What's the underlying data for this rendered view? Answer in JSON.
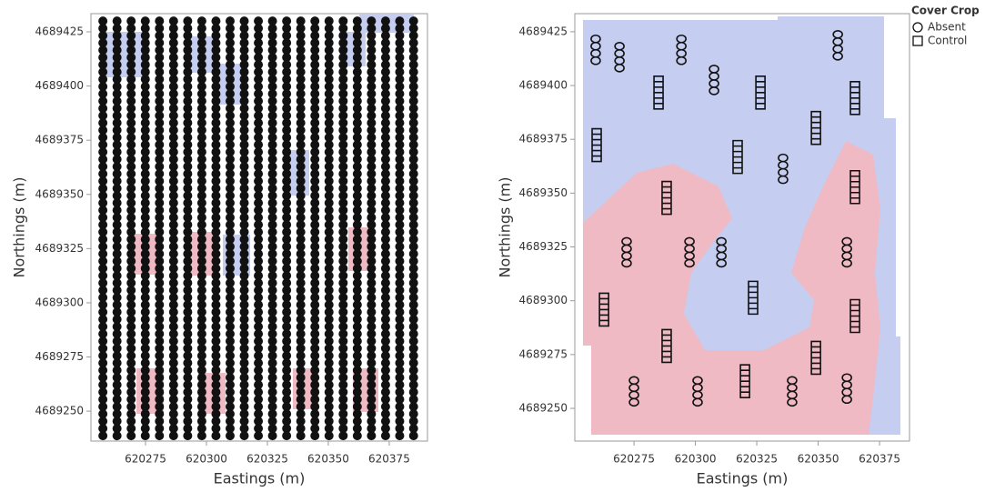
{
  "chart_data": [
    {
      "type": "scatter",
      "xlabel": "Eastings (m)",
      "ylabel": "Northings (m)",
      "xlim": [
        620252.6,
        620390.7
      ],
      "ylim": [
        4689236.2,
        4689433.4
      ],
      "xticks": [
        620275,
        620300,
        620325,
        620350,
        620375
      ],
      "yticks": [
        4689250,
        4689275,
        4689300,
        4689325,
        4689350,
        4689375,
        4689400,
        4689425
      ],
      "color": "#111111",
      "tracks": [
        {
          "x": [
            620257.5,
            620257.5
          ],
          "y": [
            4689430,
            4689238
          ]
        },
        {
          "x": [
            620263.3,
            620263.3
          ],
          "y": [
            4689430,
            4689238
          ]
        },
        {
          "x": [
            620269.1,
            620269.1
          ],
          "y": [
            4689430,
            4689238
          ]
        },
        {
          "x": [
            620274.9,
            620274.9
          ],
          "y": [
            4689430,
            4689238
          ]
        },
        {
          "x": [
            620280.7,
            620280.7
          ],
          "y": [
            4689430,
            4689238
          ]
        },
        {
          "x": [
            620286.5,
            620286.5
          ],
          "y": [
            4689430,
            4689238
          ]
        },
        {
          "x": [
            620292.3,
            620292.3
          ],
          "y": [
            4689430,
            4689238
          ]
        },
        {
          "x": [
            620298.1,
            620298.1
          ],
          "y": [
            4689430,
            4689238
          ]
        },
        {
          "x": [
            620303.9,
            620303.9
          ],
          "y": [
            4689430,
            4689238
          ]
        },
        {
          "x": [
            620309.7,
            620309.7
          ],
          "y": [
            4689430,
            4689238
          ]
        },
        {
          "x": [
            620315.5,
            620315.5
          ],
          "y": [
            4689430,
            4689238
          ]
        },
        {
          "x": [
            620321.3,
            620321.3
          ],
          "y": [
            4689430,
            4689238
          ]
        },
        {
          "x": [
            620327.1,
            620327.1
          ],
          "y": [
            4689430,
            4689238
          ]
        },
        {
          "x": [
            620332.9,
            620332.9
          ],
          "y": [
            4689430,
            4689238
          ]
        },
        {
          "x": [
            620338.7,
            620338.7
          ],
          "y": [
            4689430,
            4689238
          ]
        },
        {
          "x": [
            620344.5,
            620344.5
          ],
          "y": [
            4689430,
            4689238
          ]
        },
        {
          "x": [
            620350.3,
            620350.3
          ],
          "y": [
            4689430,
            4689238
          ]
        },
        {
          "x": [
            620356.1,
            620356.1
          ],
          "y": [
            4689430,
            4689238
          ]
        },
        {
          "x": [
            620361.9,
            620361.9
          ],
          "y": [
            4689430,
            4689238
          ]
        },
        {
          "x": [
            620367.7,
            620367.7
          ],
          "y": [
            4689430,
            4689238
          ]
        },
        {
          "x": [
            620373.5,
            620373.5
          ],
          "y": [
            4689430,
            4689238
          ]
        },
        {
          "x": [
            620379.3,
            620379.3
          ],
          "y": [
            4689430,
            4689238
          ]
        },
        {
          "x": [
            620385.0,
            620385.0
          ],
          "y": [
            4689430,
            4689238
          ]
        }
      ]
    },
    {
      "type": "scatter",
      "xlabel": "Eastings (m)",
      "ylabel": "Northings (m)",
      "xlim": [
        620250.9,
        620387.2
      ],
      "ylim": [
        4689234.8,
        4689433.4
      ],
      "xticks": [
        620275,
        620300,
        620325,
        620350,
        620375
      ],
      "yticks": [
        4689250,
        4689275,
        4689300,
        4689325,
        4689350,
        4689375,
        4689400,
        4689425
      ],
      "legend_title": "Cover Crop",
      "legend": "upper right",
      "series": [
        {
          "name": "Absent",
          "marker": "circle",
          "color": "#111111",
          "x": [
            620259.4,
            620269.1,
            620294.3,
            620307.6,
            620335.7,
            620358.0,
            620272.0,
            620297.6,
            620310.6,
            620361.7,
            620275.0,
            620300.9,
            620339.4,
            620361.7
          ],
          "y": [
            4689416.6,
            4689413.2,
            4689416.6,
            4689402.6,
            4689361.3,
            4689418.7,
            4689322.5,
            4689322.5,
            4689322.5,
            4689322.5,
            4689257.9,
            4689257.9,
            4689257.9,
            4689259.2
          ]
        },
        {
          "name": "Control",
          "marker": "square",
          "color": "#111111",
          "x": [
            620285.0,
            620326.5,
            620365.0,
            620259.8,
            620317.2,
            620349.1,
            620288.3,
            620365.0,
            620262.8,
            620323.5,
            620365.0,
            620288.3,
            620320.2,
            620349.1
          ],
          "y": [
            4689396.7,
            4689396.7,
            4689394.2,
            4689372.3,
            4689366.8,
            4689380.3,
            4689347.8,
            4689352.8,
            4689295.9,
            4689301.4,
            4689292.9,
            4689279.0,
            4689262.6,
            4689273.5
          ]
        }
      ]
    }
  ]
}
